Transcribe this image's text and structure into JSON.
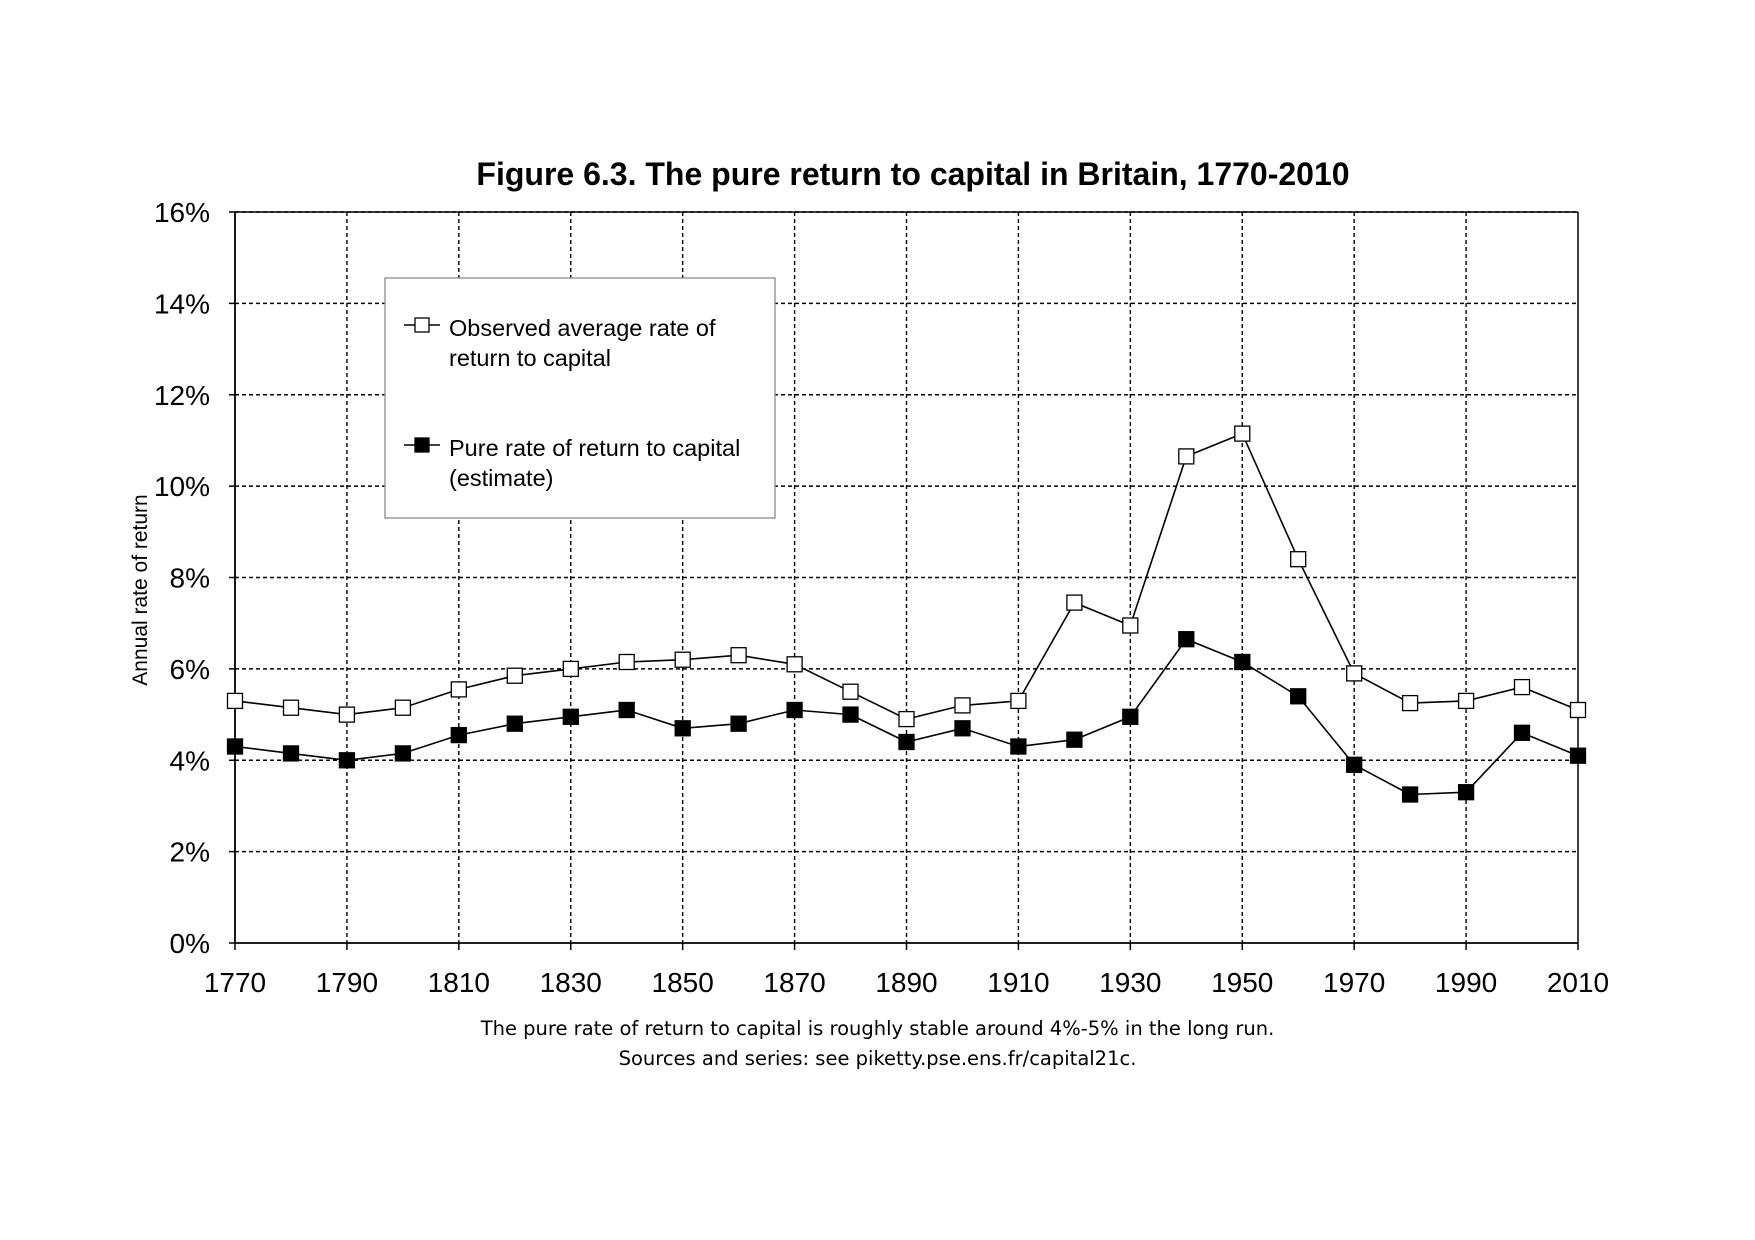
{
  "chart_data": {
    "type": "line",
    "title": "Figure 6.3. The pure return to capital in Britain, 1770-2010",
    "ylabel": "Annual rate of return",
    "xlabel": "",
    "xlim": [
      1770,
      2010
    ],
    "ylim": [
      0,
      0.16
    ],
    "x_ticks": [
      1770,
      1790,
      1810,
      1830,
      1850,
      1870,
      1890,
      1910,
      1930,
      1950,
      1970,
      1990,
      2010
    ],
    "y_ticks": [
      0,
      0.02,
      0.04,
      0.06,
      0.08,
      0.1,
      0.12,
      0.14,
      0.16
    ],
    "x_tick_labels": [
      "1770",
      "1790",
      "1810",
      "1830",
      "1850",
      "1870",
      "1890",
      "1910",
      "1930",
      "1950",
      "1970",
      "1990",
      "2010"
    ],
    "y_tick_labels": [
      "0%",
      "2%",
      "4%",
      "6%",
      "8%",
      "10%",
      "12%",
      "14%",
      "16%"
    ],
    "grid": true,
    "legend_position": "top-left",
    "x": [
      1770,
      1780,
      1790,
      1800,
      1810,
      1820,
      1830,
      1840,
      1850,
      1860,
      1870,
      1880,
      1890,
      1900,
      1910,
      1920,
      1930,
      1940,
      1950,
      1960,
      1970,
      1980,
      1990,
      2000,
      2010
    ],
    "series": [
      {
        "name": "Observed average rate of return to capital",
        "legend_lines": [
          "Observed average rate of",
          "return to capital"
        ],
        "marker": "hollow-square",
        "values": [
          0.053,
          0.0515,
          0.05,
          0.0515,
          0.0555,
          0.0585,
          0.06,
          0.0615,
          0.062,
          0.063,
          0.061,
          0.055,
          0.049,
          0.052,
          0.053,
          0.0745,
          0.0695,
          0.1065,
          0.1115,
          0.084,
          0.059,
          0.0525,
          0.053,
          0.056,
          0.051
        ]
      },
      {
        "name": "Pure rate of return to capital (estimate)",
        "legend_lines": [
          "Pure rate of return to capital",
          "(estimate)"
        ],
        "marker": "filled-square",
        "values": [
          0.043,
          0.0415,
          0.04,
          0.0415,
          0.0455,
          0.048,
          0.0495,
          0.051,
          0.047,
          0.048,
          0.051,
          0.05,
          0.044,
          0.047,
          0.043,
          0.0445,
          0.0495,
          0.0665,
          0.0615,
          0.054,
          0.039,
          0.0325,
          0.033,
          0.046,
          0.041
        ]
      }
    ]
  },
  "captions": {
    "line1": "The pure rate of return to capital is roughly stable around 4%-5% in the long run.",
    "line2": "Sources and series: see piketty.pse.ens.fr/capital21c."
  }
}
